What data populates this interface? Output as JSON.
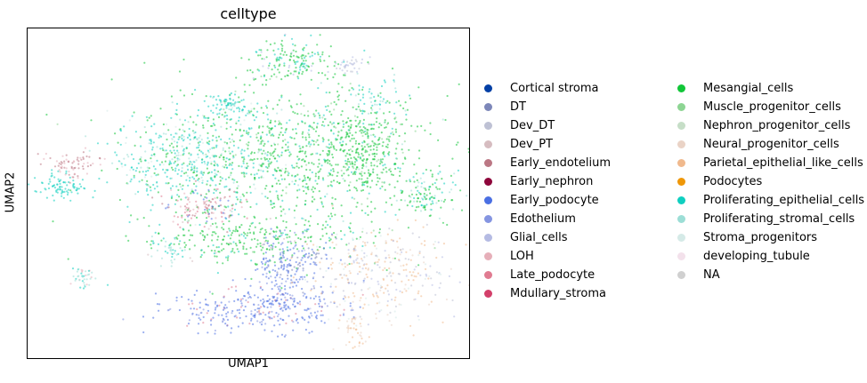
{
  "chart_data": {
    "type": "scatter",
    "title": "celltype",
    "xlabel": "UMAP1",
    "ylabel": "UMAP2",
    "grid": false,
    "legend_placement": "right-outside",
    "legend_columns": 2,
    "categories": [
      {
        "name": "Cortical stroma",
        "color": "#023fa5"
      },
      {
        "name": "DT",
        "color": "#7d87b9"
      },
      {
        "name": "Dev_DT",
        "color": "#bec1d4"
      },
      {
        "name": "Dev_PT",
        "color": "#d6bcc0"
      },
      {
        "name": "Early_endotelium",
        "color": "#bb7784"
      },
      {
        "name": "Early_nephron",
        "color": "#8e063b"
      },
      {
        "name": "Early_podocyte",
        "color": "#4a6fe3"
      },
      {
        "name": "Edothelium",
        "color": "#8595e1"
      },
      {
        "name": "Glial_cells",
        "color": "#b5bbe3"
      },
      {
        "name": "LOH",
        "color": "#e6afb9"
      },
      {
        "name": "Late_podocyte",
        "color": "#e07b91"
      },
      {
        "name": "Mdullary_stroma",
        "color": "#d33f6a"
      },
      {
        "name": "Mesangial_cells",
        "color": "#11c638"
      },
      {
        "name": "Muscle_progenitor_cells",
        "color": "#8dd593"
      },
      {
        "name": "Nephron_progenitor_cells",
        "color": "#c6dec7"
      },
      {
        "name": "Neural_progenitor_cells",
        "color": "#ead3c6"
      },
      {
        "name": "Parietal_epithelial_like_cells",
        "color": "#f0b98d"
      },
      {
        "name": "Podocytes",
        "color": "#ef9708"
      },
      {
        "name": "Proliferating_epithelial_cells",
        "color": "#0fcfc0"
      },
      {
        "name": "Proliferating_stromal_cells",
        "color": "#9cded6"
      },
      {
        "name": "Stroma_progenitors",
        "color": "#d5eae7"
      },
      {
        "name": "developing_tubule",
        "color": "#f3e1eb"
      },
      {
        "name": "NA",
        "color": "#d0d0d0"
      }
    ],
    "clusters": [
      {
        "name": "main-green-mass",
        "x": 0.6,
        "y": 0.6,
        "sx": 0.16,
        "sy": 0.12,
        "n": 900,
        "mix": {
          "Mesangial_cells": 0.72,
          "Proliferating_epithelial_cells": 0.18,
          "Muscle_progenitor_cells": 0.05,
          "Proliferating_stromal_cells": 0.05
        }
      },
      {
        "name": "right-green-lobe",
        "x": 0.76,
        "y": 0.64,
        "sx": 0.05,
        "sy": 0.07,
        "n": 280,
        "mix": {
          "Mesangial_cells": 0.9,
          "Muscle_progenitor_cells": 0.1
        }
      },
      {
        "name": "far-right-lobe",
        "x": 0.9,
        "y": 0.49,
        "sx": 0.03,
        "sy": 0.04,
        "n": 110,
        "mix": {
          "Mesangial_cells": 0.5,
          "Proliferating_epithelial_cells": 0.3,
          "Proliferating_stromal_cells": 0.2
        }
      },
      {
        "name": "left-cyan-mass",
        "x": 0.37,
        "y": 0.6,
        "sx": 0.09,
        "sy": 0.07,
        "n": 460,
        "mix": {
          "Proliferating_epithelial_cells": 0.5,
          "Proliferating_stromal_cells": 0.25,
          "Mesangial_cells": 0.15,
          "Stroma_progenitors": 0.1
        }
      },
      {
        "name": "lower-green-band",
        "x": 0.5,
        "y": 0.36,
        "sx": 0.12,
        "sy": 0.035,
        "n": 260,
        "mix": {
          "Mesangial_cells": 0.75,
          "Proliferating_epithelial_cells": 0.15,
          "Dev_PT": 0.1
        }
      },
      {
        "name": "left-pink-wedge",
        "x": 0.4,
        "y": 0.46,
        "sx": 0.04,
        "sy": 0.03,
        "n": 120,
        "mix": {
          "Late_podocyte": 0.35,
          "LOH": 0.3,
          "Early_endotelium": 0.2,
          "Early_podocyte": 0.15
        }
      },
      {
        "name": "top-green-cluster",
        "x": 0.6,
        "y": 0.9,
        "sx": 0.05,
        "sy": 0.03,
        "n": 160,
        "mix": {
          "Mesangial_cells": 0.7,
          "Proliferating_epithelial_cells": 0.2,
          "Glial_cells": 0.1
        }
      },
      {
        "name": "top-small-cyan",
        "x": 0.45,
        "y": 0.77,
        "sx": 0.025,
        "sy": 0.015,
        "n": 50,
        "mix": {
          "Proliferating_epithelial_cells": 0.7,
          "Proliferating_stromal_cells": 0.3
        }
      },
      {
        "name": "top-lavender",
        "x": 0.73,
        "y": 0.89,
        "sx": 0.02,
        "sy": 0.012,
        "n": 35,
        "mix": {
          "Glial_cells": 0.6,
          "Dev_DT": 0.4
        }
      },
      {
        "name": "top-right-cyan-arc",
        "x": 0.79,
        "y": 0.79,
        "sx": 0.03,
        "sy": 0.03,
        "n": 50,
        "mix": {
          "Proliferating_epithelial_cells": 0.6,
          "Proliferating_stromal_cells": 0.4
        }
      },
      {
        "name": "upper-left-cyan",
        "x": 0.45,
        "y": 0.75,
        "sx": 0.03,
        "sy": 0.02,
        "n": 40,
        "mix": {
          "Proliferating_epithelial_cells": 0.8,
          "Stroma_progenitors": 0.2
        }
      },
      {
        "name": "far-left-cyan",
        "x": 0.08,
        "y": 0.52,
        "sx": 0.035,
        "sy": 0.018,
        "n": 90,
        "mix": {
          "Proliferating_epithelial_cells": 1.0
        }
      },
      {
        "name": "far-left-rose",
        "x": 0.1,
        "y": 0.59,
        "sx": 0.03,
        "sy": 0.02,
        "n": 70,
        "mix": {
          "Early_endotelium": 0.6,
          "LOH": 0.4
        }
      },
      {
        "name": "bottom-left-small",
        "x": 0.13,
        "y": 0.24,
        "sx": 0.012,
        "sy": 0.02,
        "n": 40,
        "mix": {
          "Proliferating_stromal_cells": 0.5,
          "Proliferating_epithelial_cells": 0.3,
          "LOH": 0.2
        }
      },
      {
        "name": "bottom-blue-arc",
        "x": 0.52,
        "y": 0.15,
        "sx": 0.11,
        "sy": 0.035,
        "n": 320,
        "mix": {
          "Early_podocyte": 0.65,
          "Edothelium": 0.2,
          "Late_podocyte": 0.15
        }
      },
      {
        "name": "blue-arm-up",
        "x": 0.58,
        "y": 0.26,
        "sx": 0.03,
        "sy": 0.07,
        "n": 130,
        "mix": {
          "Early_podocyte": 0.7,
          "Edothelium": 0.3
        }
      },
      {
        "name": "lower-right-mix",
        "x": 0.79,
        "y": 0.25,
        "sx": 0.08,
        "sy": 0.07,
        "n": 320,
        "mix": {
          "Parietal_epithelial_like_cells": 0.35,
          "Glial_cells": 0.2,
          "Dev_DT": 0.15,
          "Neural_progenitor_cells": 0.15,
          "Stroma_progenitors": 0.15
        }
      },
      {
        "name": "lower-right-bottom",
        "x": 0.74,
        "y": 0.08,
        "sx": 0.02,
        "sy": 0.03,
        "n": 40,
        "mix": {
          "Neural_progenitor_cells": 0.5,
          "Parietal_epithelial_like_cells": 0.5
        }
      },
      {
        "name": "mid-left-small",
        "x": 0.32,
        "y": 0.33,
        "sx": 0.02,
        "sy": 0.02,
        "n": 40,
        "mix": {
          "Proliferating_stromal_cells": 0.6,
          "Proliferating_epithelial_cells": 0.4
        }
      },
      {
        "name": "purple-strands",
        "x": 0.62,
        "y": 0.3,
        "sx": 0.05,
        "sy": 0.03,
        "n": 80,
        "mix": {
          "DT": 0.5,
          "Early_podocyte": 0.5
        }
      }
    ]
  }
}
